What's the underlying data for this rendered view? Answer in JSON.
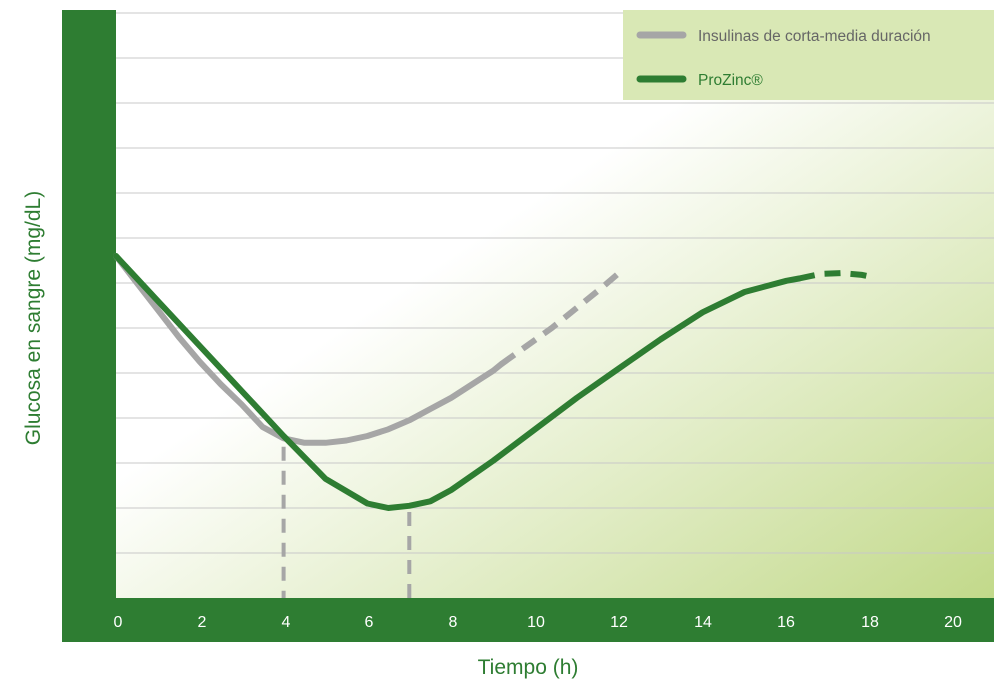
{
  "colors": {
    "dark_green": "#2e7d32",
    "gray_series": "#a6a6a6",
    "green_series": "#2e7d32",
    "grid": "#c8c8c8",
    "legend_bg": "#d9e8b5",
    "gradient_light": "#ffffff",
    "gradient_dark": "#c2d98a"
  },
  "chart_data": {
    "type": "line",
    "title": "",
    "xlabel": "Tiempo (h)",
    "ylabel": "Glucosa en sangre (mg/dL)",
    "x_ticks": [
      "0",
      "2",
      "4",
      "6",
      "8",
      "10",
      "12",
      "14",
      "16",
      "18",
      "20"
    ],
    "xlim": [
      0,
      21
    ],
    "ylim": [
      0,
      13
    ],
    "y_tick_labels_shown": false,
    "grid": true,
    "legend_position": "top-right",
    "series": [
      {
        "name": "Insulinas de corta-media duración",
        "color": "#a6a6a6",
        "solid": {
          "x": [
            0,
            0.5,
            1,
            1.5,
            2,
            2.5,
            3,
            3.5,
            4,
            4.5,
            5,
            5.5,
            6,
            6.5,
            7,
            7.5,
            8,
            8.5,
            9,
            9.2
          ],
          "y": [
            7.6,
            7.0,
            6.4,
            5.8,
            5.25,
            4.75,
            4.3,
            3.8,
            3.55,
            3.45,
            3.45,
            3.5,
            3.6,
            3.75,
            3.95,
            4.2,
            4.45,
            4.75,
            5.05,
            5.2
          ]
        },
        "dashed": {
          "x": [
            9.2,
            9.8,
            10.4,
            11,
            11.6,
            12.1
          ],
          "y": [
            5.2,
            5.6,
            6.0,
            6.45,
            6.9,
            7.3
          ]
        },
        "drop_line_x": 4
      },
      {
        "name": "ProZinc®",
        "color": "#2e7d32",
        "solid": {
          "x": [
            0,
            1,
            2,
            3,
            4,
            5,
            6,
            6.5,
            7,
            7.5,
            8,
            9,
            10,
            11,
            12,
            13,
            14,
            15,
            16,
            16.3
          ],
          "y": [
            7.6,
            6.6,
            5.6,
            4.6,
            3.6,
            2.65,
            2.1,
            2.0,
            2.05,
            2.15,
            2.4,
            3.05,
            3.75,
            4.45,
            5.1,
            5.75,
            6.35,
            6.8,
            7.05,
            7.1
          ]
        },
        "dashed": {
          "x": [
            16.3,
            16.8,
            17.3,
            17.8,
            18.1
          ],
          "y": [
            7.1,
            7.2,
            7.22,
            7.18,
            7.12
          ]
        },
        "drop_line_x": 7
      }
    ]
  }
}
